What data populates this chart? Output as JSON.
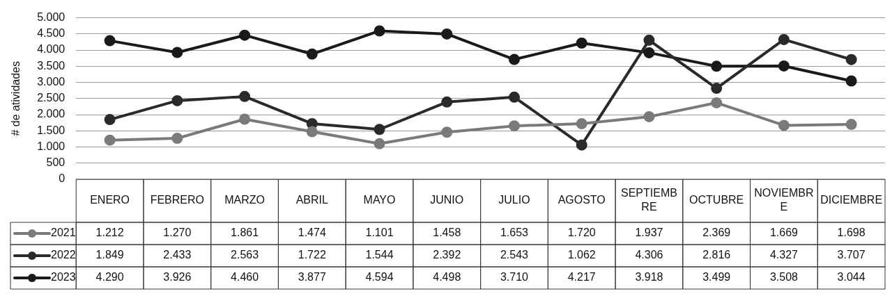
{
  "chart_data": {
    "type": "line",
    "ylabel": "# de atividades",
    "categories": [
      "ENERO",
      "FEBRERO",
      "MARZO",
      "ABRIL",
      "MAYO",
      "JUNIO",
      "JULIO",
      "AGOSTO",
      "SEPTIEMBRE",
      "OCTUBRE",
      "NOVIEMBRE",
      "DICIEMBRE"
    ],
    "series": [
      {
        "name": "2021",
        "color": "#7a7a7a",
        "values": [
          1212,
          1270,
          1861,
          1474,
          1101,
          1458,
          1653,
          1720,
          1937,
          2369,
          1669,
          1698
        ],
        "value_labels": [
          "1.212",
          "1.270",
          "1.861",
          "1.474",
          "1.101",
          "1.458",
          "1.653",
          "1.720",
          "1.937",
          "2.369",
          "1.669",
          "1.698"
        ]
      },
      {
        "name": "2022",
        "color": "#2a2a2a",
        "values": [
          1849,
          2433,
          2563,
          1722,
          1544,
          2392,
          2543,
          1062,
          4306,
          2816,
          4327,
          3707
        ],
        "value_labels": [
          "1.849",
          "2.433",
          "2.563",
          "1.722",
          "1.544",
          "2.392",
          "2.543",
          "1.062",
          "4.306",
          "2.816",
          "4.327",
          "3.707"
        ]
      },
      {
        "name": "2023",
        "color": "#1a1a1a",
        "values": [
          4290,
          3926,
          4460,
          3877,
          4594,
          4498,
          3710,
          4217,
          3918,
          3499,
          3508,
          3044
        ],
        "value_labels": [
          "4.290",
          "3.926",
          "4.460",
          "3.877",
          "4.594",
          "4.498",
          "3.710",
          "4.217",
          "3.918",
          "3.499",
          "3.508",
          "3.044"
        ]
      }
    ],
    "ylim": [
      0,
      5000
    ],
    "yticks": [
      0,
      {
        "value": 500,
        "label": "500"
      },
      {
        "value": 1000,
        "label": "1.000"
      },
      {
        "value": 1500,
        "label": "1.500"
      },
      {
        "value": 2000,
        "label": "2.000"
      },
      {
        "value": 2500,
        "label": "2.500"
      },
      {
        "value": 3000,
        "label": "3.000"
      },
      {
        "value": 3500,
        "label": "3.500"
      },
      {
        "value": 4000,
        "label": "4.000"
      },
      {
        "value": 4500,
        "label": "4.500"
      },
      {
        "value": 5000,
        "label": "5.000"
      }
    ],
    "grid": "y",
    "legend": "bottom left",
    "marker": "circle",
    "line_style": "solid"
  }
}
